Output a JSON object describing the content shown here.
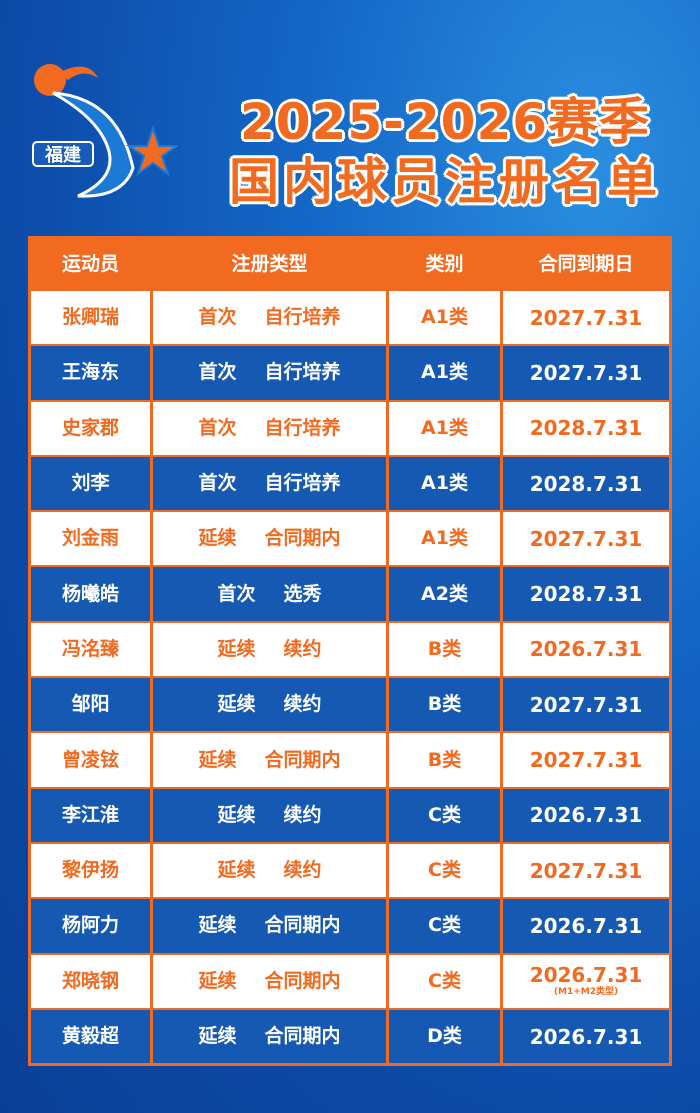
{
  "logo": {
    "text": "福建",
    "colors": {
      "orange": "#f26a1f",
      "blue": "#1a7ad6"
    }
  },
  "title": {
    "line1": "2025-2026赛季",
    "line2": "国内球员注册名单"
  },
  "table": {
    "headers": [
      "运动员",
      "注册类型",
      "类别",
      "合同到期日"
    ],
    "rows": [
      {
        "name": "张卿瑞",
        "reg1": "首次",
        "reg2": "自行培养",
        "cat": "A1类",
        "date": "2027.7.31"
      },
      {
        "name": "王海东",
        "reg1": "首次",
        "reg2": "自行培养",
        "cat": "A1类",
        "date": "2027.7.31"
      },
      {
        "name": "史家郡",
        "reg1": "首次",
        "reg2": "自行培养",
        "cat": "A1类",
        "date": "2028.7.31"
      },
      {
        "name": "刘李",
        "reg1": "首次",
        "reg2": "自行培养",
        "cat": "A1类",
        "date": "2028.7.31"
      },
      {
        "name": "刘金雨",
        "reg1": "延续",
        "reg2": "合同期内",
        "cat": "A1类",
        "date": "2027.7.31"
      },
      {
        "name": "杨曦皓",
        "reg1": "首次",
        "reg2": "选秀",
        "cat": "A2类",
        "date": "2028.7.31"
      },
      {
        "name": "冯洺臻",
        "reg1": "延续",
        "reg2": "续约",
        "cat": "B类",
        "date": "2026.7.31"
      },
      {
        "name": "邹阳",
        "reg1": "延续",
        "reg2": "续约",
        "cat": "B类",
        "date": "2027.7.31"
      },
      {
        "name": "曾凌铉",
        "reg1": "延续",
        "reg2": "合同期内",
        "cat": "B类",
        "date": "2027.7.31"
      },
      {
        "name": "李江淮",
        "reg1": "延续",
        "reg2": "续约",
        "cat": "C类",
        "date": "2026.7.31"
      },
      {
        "name": "黎伊扬",
        "reg1": "延续",
        "reg2": "续约",
        "cat": "C类",
        "date": "2027.7.31"
      },
      {
        "name": "杨阿力",
        "reg1": "延续",
        "reg2": "合同期内",
        "cat": "C类",
        "date": "2026.7.31"
      },
      {
        "name": "郑晓钢",
        "reg1": "延续",
        "reg2": "合同期内",
        "cat": "C类",
        "date": "2026.7.31",
        "note": "(M1+M2类型)"
      },
      {
        "name": "黄毅超",
        "reg1": "延续",
        "reg2": "合同期内",
        "cat": "D类",
        "date": "2026.7.31"
      }
    ]
  }
}
